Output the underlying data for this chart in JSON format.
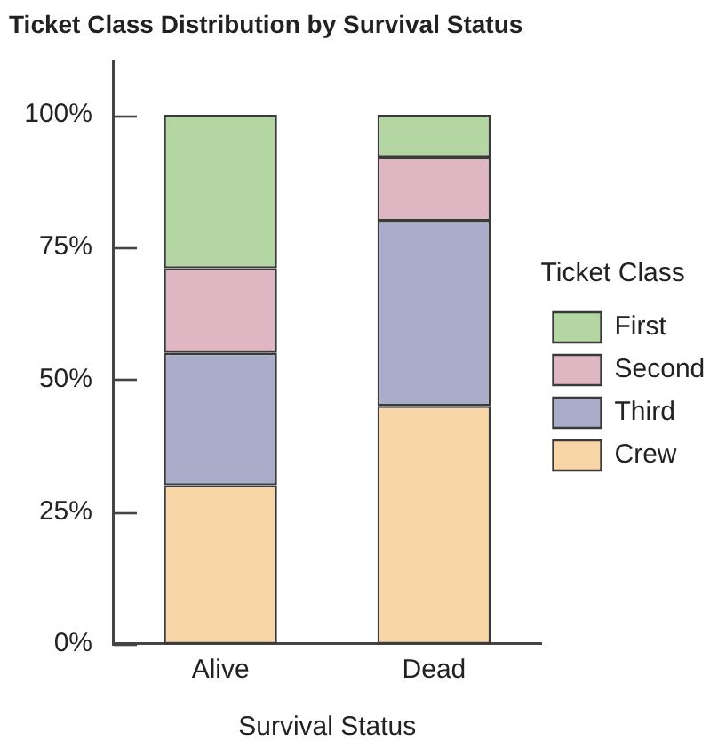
{
  "chart_data": {
    "type": "bar",
    "title": "Ticket Class Distribution by Survival Status",
    "xlabel": "Survival Status",
    "categories": [
      "Alive",
      "Dead"
    ],
    "stacked": true,
    "series": [
      {
        "name": "Crew",
        "color": "#f8d6a8",
        "values": [
          30,
          45
        ]
      },
      {
        "name": "Third",
        "color": "#a9adc9",
        "values": [
          25,
          35
        ]
      },
      {
        "name": "Second",
        "color": "#dfb7c3",
        "values": [
          16,
          12
        ]
      },
      {
        "name": "First",
        "color": "#b3d6a3",
        "values": [
          29,
          8
        ]
      }
    ],
    "ylim": [
      0,
      110
    ],
    "yticks": [
      {
        "value": 0,
        "label": "0%"
      },
      {
        "value": 25,
        "label": "25%"
      },
      {
        "value": 50,
        "label": "50%"
      },
      {
        "value": 75,
        "label": "75%"
      },
      {
        "value": 100,
        "label": "100%"
      }
    ],
    "grid": false,
    "legend": "right",
    "legend_title": "Ticket Class"
  }
}
